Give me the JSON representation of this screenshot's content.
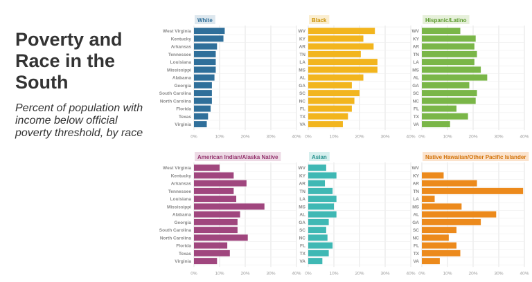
{
  "title": "Poverty and Race in the South",
  "subtitle": "Percent of population with income below official poverty threshold, by race",
  "chart_data": [
    {
      "type": "bar",
      "orientation": "horizontal",
      "title": "White",
      "color": "#2f6f9a",
      "title_bg": "#dde7ee",
      "title_color": "#2f6f9a",
      "categories": [
        "West Virginia",
        "Kentucky",
        "Arkansas",
        "Tennessee",
        "Louisiana",
        "Mississippi",
        "Alabama",
        "Georgia",
        "South Carolina",
        "North Carolina",
        "Florida",
        "Texas",
        "Virginia"
      ],
      "values": [
        12,
        11.5,
        9,
        8.5,
        8.5,
        8.5,
        8,
        7,
        7,
        7,
        6.5,
        5.5,
        5
      ],
      "xlim": [
        0,
        40
      ],
      "xticks": [
        "0%",
        "10%",
        "20%",
        "30%",
        "40%"
      ]
    },
    {
      "type": "bar",
      "orientation": "horizontal",
      "title": "Black",
      "color": "#f2b51e",
      "title_bg": "#fbeed0",
      "title_color": "#c98f00",
      "categories": [
        "WV",
        "KY",
        "AR",
        "TN",
        "LA",
        "MS",
        "AL",
        "GA",
        "SC",
        "NC",
        "FL",
        "TX",
        "VA"
      ],
      "values": [
        26,
        21.5,
        25.5,
        20.5,
        27,
        27,
        21.5,
        17,
        20,
        18,
        17,
        15.5,
        13.5
      ],
      "xlim": [
        0,
        40
      ],
      "xticks": [
        "0%",
        "10%",
        "20%",
        "30%",
        "40%"
      ]
    },
    {
      "type": "bar",
      "orientation": "horizontal",
      "title": "Hispanic/Latino",
      "color": "#7ab648",
      "title_bg": "#e6f0da",
      "title_color": "#5a9a2c",
      "categories": [
        "WV",
        "KY",
        "AR",
        "TN",
        "LA",
        "MS",
        "AL",
        "GA",
        "SC",
        "NC",
        "FL",
        "TX",
        "VA"
      ],
      "values": [
        15,
        21,
        20.5,
        21.5,
        20.5,
        23,
        25.5,
        18.5,
        21.5,
        21,
        13.5,
        18,
        11
      ],
      "xlim": [
        0,
        40
      ],
      "xticks": [
        "0%",
        "10%",
        "20%",
        "30%",
        "40%"
      ]
    },
    {
      "type": "bar",
      "orientation": "horizontal",
      "title": "American Indian/Alaska Native",
      "color": "#a0467e",
      "title_bg": "#eddae5",
      "title_color": "#93336d",
      "categories": [
        "West Virginia",
        "Kentucky",
        "Arkansas",
        "Tennessee",
        "Louisiana",
        "Mississippi",
        "Alabama",
        "Georgia",
        "South Carolina",
        "North Carolina",
        "Florida",
        "Texas",
        "Virginia"
      ],
      "values": [
        10,
        15.5,
        20.5,
        15.5,
        16.5,
        27.5,
        18,
        17,
        17,
        21,
        13,
        14,
        9
      ],
      "xlim": [
        0,
        40
      ],
      "xticks": [
        "0%",
        "10%",
        "20%",
        "30%",
        "40%"
      ]
    },
    {
      "type": "bar",
      "orientation": "horizontal",
      "title": "Asian",
      "color": "#3fb8b4",
      "title_bg": "#d6efee",
      "title_color": "#24918d",
      "categories": [
        "WV",
        "KY",
        "AR",
        "TN",
        "LA",
        "MS",
        "AL",
        "GA",
        "SC",
        "NC",
        "FL",
        "TX",
        "VA"
      ],
      "values": [
        7,
        11,
        6.5,
        9.5,
        11,
        10,
        11,
        8,
        7,
        7.5,
        9.5,
        8,
        5.5
      ],
      "xlim": [
        0,
        40
      ],
      "xticks": [
        "0%",
        "10%",
        "20%",
        "30%",
        "40%"
      ]
    },
    {
      "type": "bar",
      "orientation": "horizontal",
      "title": "Native Hawaiian/Other Pacific Islander",
      "color": "#ec8a1c",
      "title_bg": "#fbe3cd",
      "title_color": "#d27208",
      "categories": [
        "WV",
        "KY",
        "AR",
        "TN",
        "LA",
        "MS",
        "AL",
        "GA",
        "SC",
        "NC",
        "FL",
        "TX",
        "VA"
      ],
      "values": [
        0,
        8.5,
        21.5,
        39.5,
        5,
        15.5,
        29,
        23,
        13.5,
        10.5,
        13.5,
        15,
        7
      ],
      "xlim": [
        0,
        40
      ],
      "xticks": [
        "0%",
        "10%",
        "20%",
        "30%",
        "40%"
      ]
    }
  ]
}
